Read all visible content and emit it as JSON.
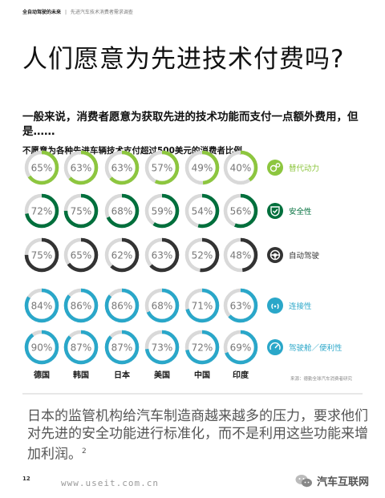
{
  "header": {
    "section": "全自动驾驶的未来",
    "separator": "|",
    "subtitle": "先进汽车技术消费者需求调查"
  },
  "title": "人们愿意为先进技术付费吗?",
  "intro": "一般来说，消费者愿意为获取先进的技术功能而支付一点额外费用，但是……",
  "chart_data": {
    "type": "donut-grid",
    "title": "不愿意为各种先进车辆技术支付超过500美元的消费者比例",
    "categories": [
      "德国",
      "韩国",
      "日本",
      "美国",
      "中国",
      "印度"
    ],
    "series": [
      {
        "name": "替代动力",
        "values": [
          65,
          63,
          63,
          57,
          49,
          40
        ],
        "color": "#8dc63f",
        "icon": "gears-icon"
      },
      {
        "name": "安全性",
        "values": [
          72,
          75,
          68,
          59,
          54,
          56
        ],
        "color": "#006f3c",
        "icon": "shield-check-icon"
      },
      {
        "name": "自动驾驶",
        "values": [
          75,
          65,
          62,
          63,
          52,
          48
        ],
        "color": "#333333",
        "icon": "steering-wheel-icon"
      },
      {
        "name": "连接性",
        "values": [
          84,
          86,
          86,
          68,
          71,
          63
        ],
        "color": "#2aa7c9",
        "icon": "signal-icon"
      },
      {
        "name": "驾驶舱／便利性",
        "values": [
          90,
          87,
          87,
          73,
          72,
          69
        ],
        "color": "#2aa7c9",
        "icon": "gauge-icon"
      }
    ],
    "track_color": "#d9d9d9",
    "source": "来源：德勤全球汽车消费者研究"
  },
  "caption": "日本的监管机构给汽车制造商越来越多的压力，要求他们对先进的安全功能进行标准化，而不是利用这些功能来增加利润。",
  "caption_ref": "2",
  "page_number": "12",
  "watermark": "www.useit.com.cn",
  "brand": "汽车互联网"
}
